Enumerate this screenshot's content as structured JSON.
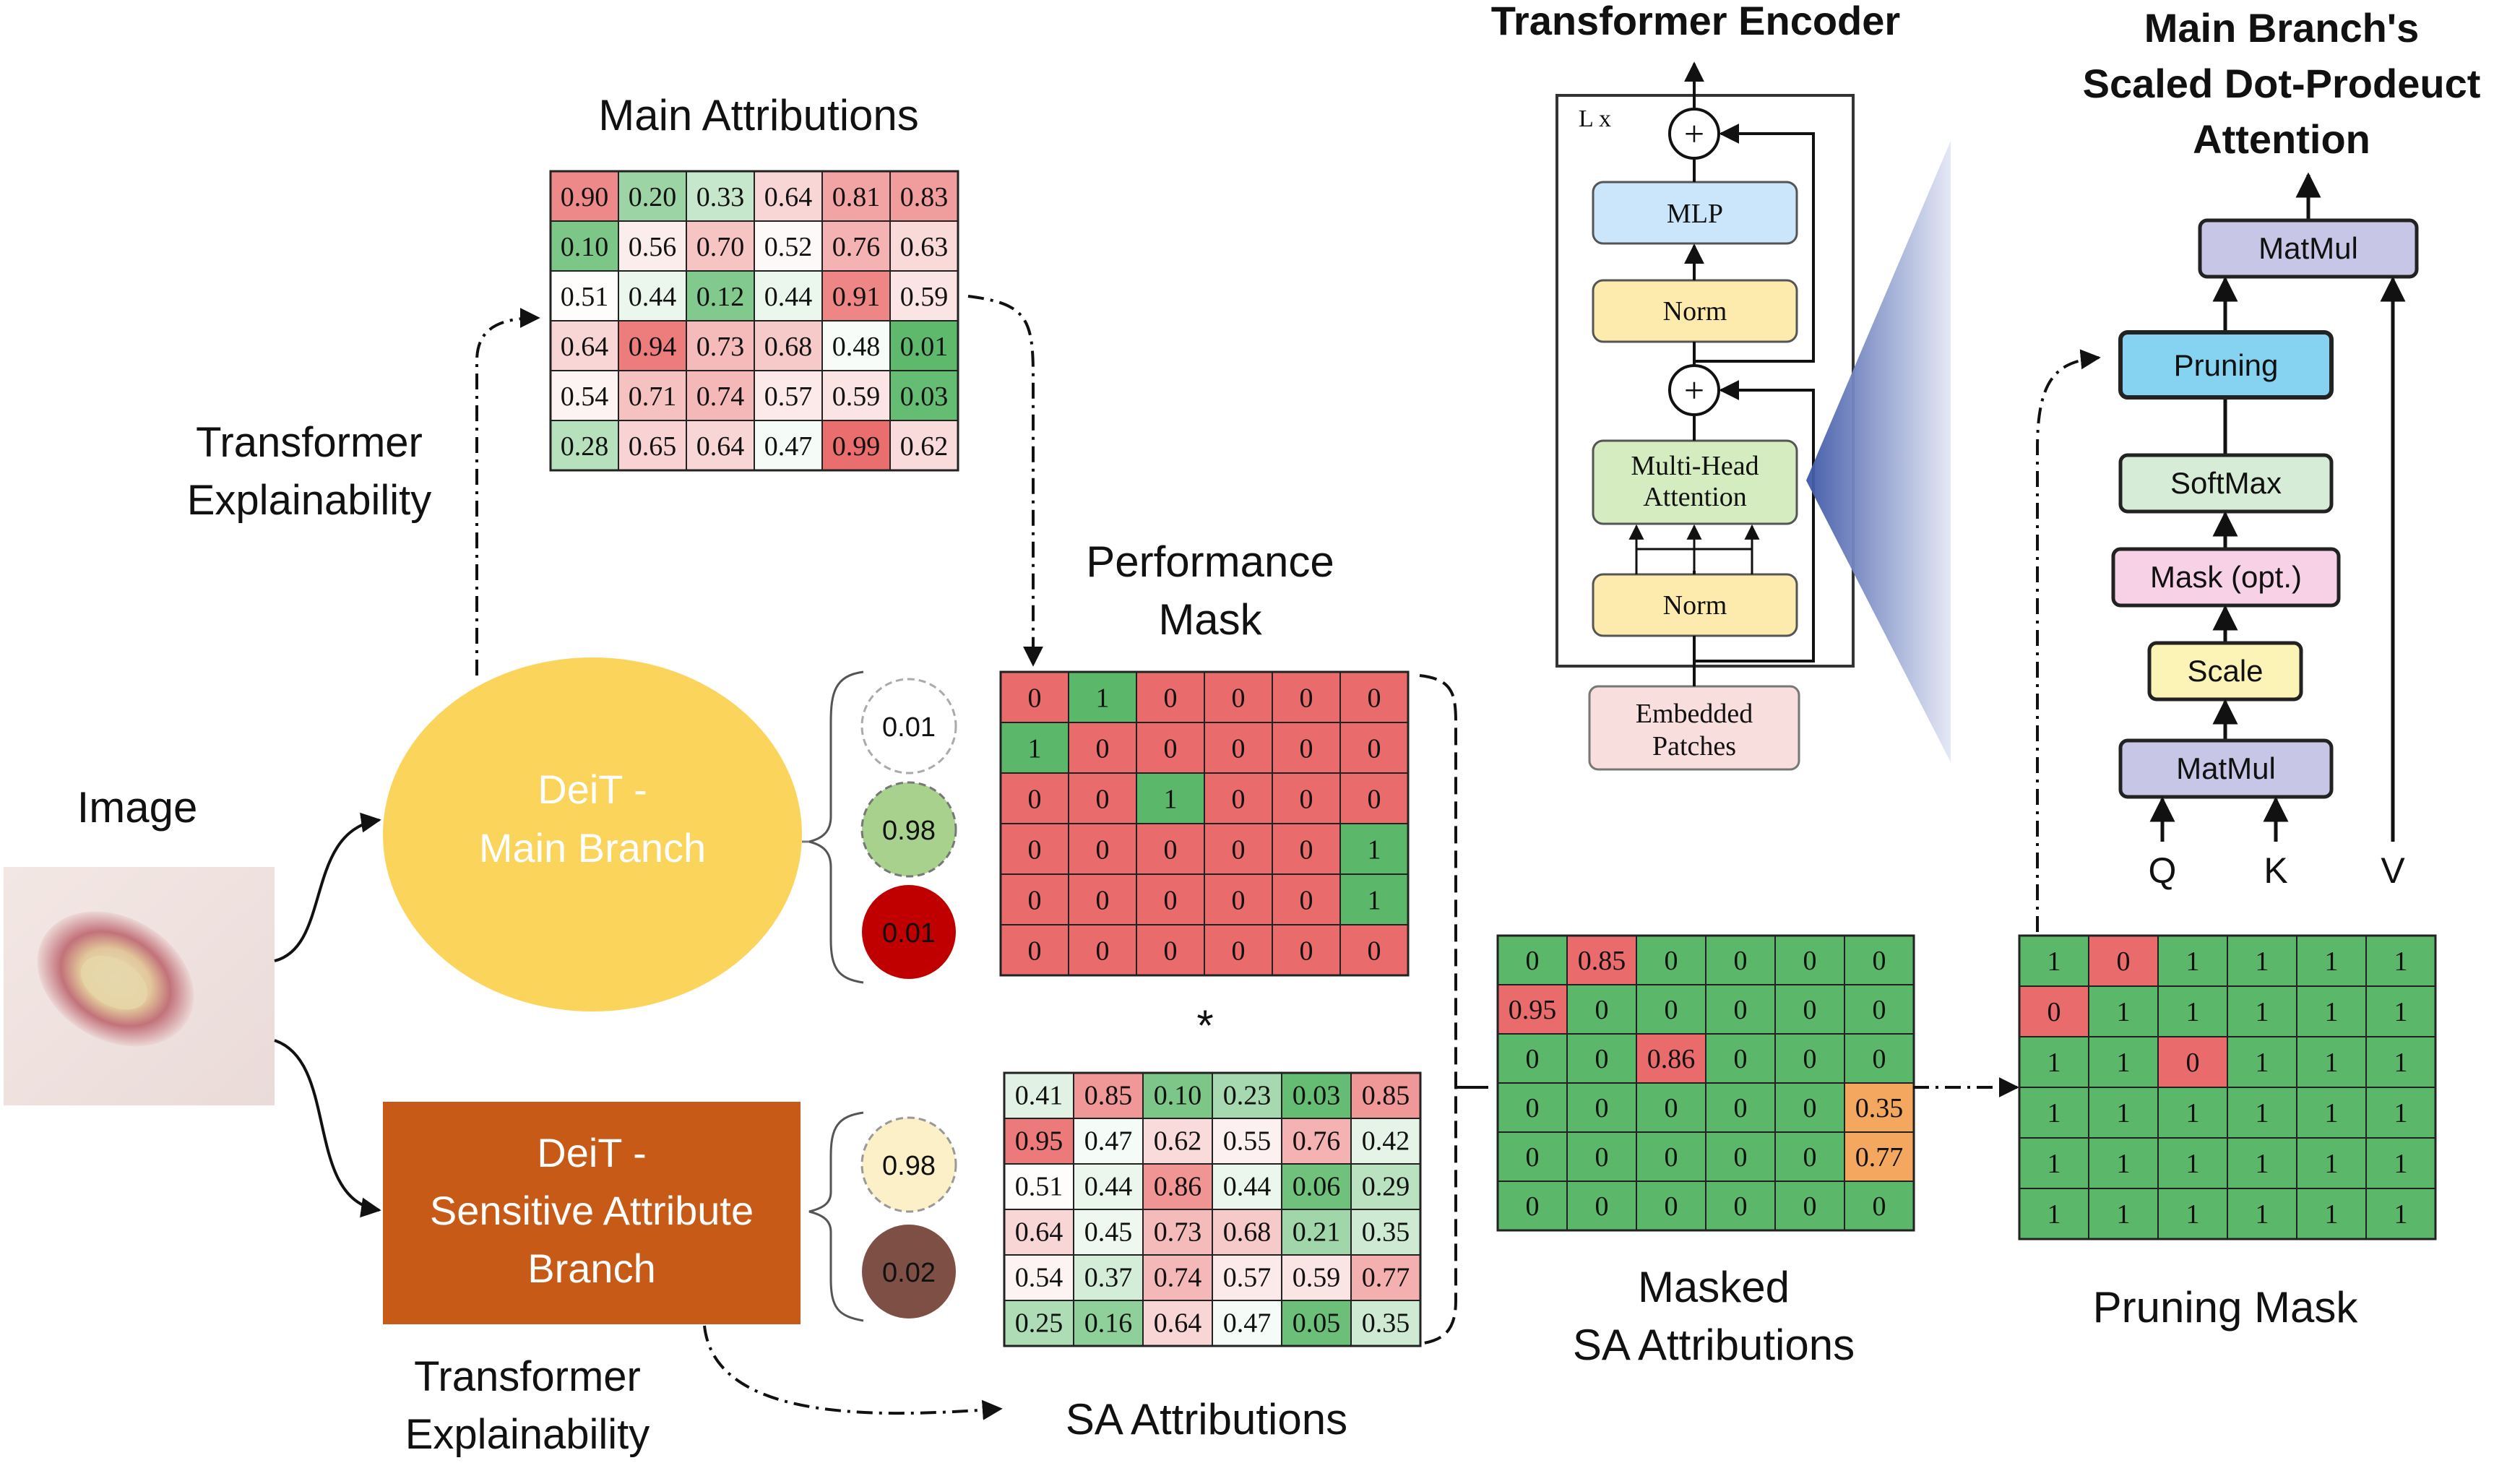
{
  "colors": {
    "green": "#5bb86a",
    "red": "#ea6b6b",
    "orange": "#f4a85f",
    "lightred": "#f8caca",
    "lightgreen": "#cfe9cf",
    "deit_main": "#fbd45c",
    "deit_sa": "#c65a16",
    "mlp": "#cbe6fb",
    "norm": "#fcebad",
    "mha": "#d4ecbf",
    "embed": "#f9dede",
    "matmul": "#c7c6e6",
    "pruning": "#86d3f1",
    "softmax": "#d6ecd6",
    "mask": "#f7d2e6",
    "scale": "#fcf3b6"
  },
  "labels": {
    "image": "Image",
    "main_attributions": "Main Attributions",
    "te_top": [
      "Transformer",
      "Explainability"
    ],
    "te_bottom": [
      "Transformer",
      "Explainability"
    ],
    "performance_mask": [
      "Performance",
      "Mask"
    ],
    "deit_main": [
      "DeiT -",
      "Main Branch"
    ],
    "deit_sa": [
      "DeiT -",
      "Sensitive Attribute",
      "Branch"
    ],
    "multiply": "*",
    "sa_attributions": "SA Attributions",
    "masked_sa": [
      "Masked",
      "SA Attributions"
    ],
    "pruning_mask": "Pruning Mask"
  },
  "scores": {
    "main": [
      "0.01",
      "0.98",
      "0.01"
    ],
    "sa": [
      "0.98",
      "0.02"
    ]
  },
  "encoder": {
    "title": "Transformer Encoder",
    "lx": "L x",
    "plus": "+",
    "mlp": "MLP",
    "norm_top": "Norm",
    "mha": [
      "Multi-Head",
      "Attention"
    ],
    "norm_bottom": "Norm",
    "embedded": [
      "Embedded",
      "Patches"
    ]
  },
  "attention": {
    "title": [
      "Main Branch's",
      "Scaled Dot-Prodeuct",
      "Attention"
    ],
    "matmul_top": "MatMul",
    "pruning": "Pruning",
    "softmax": "SoftMax",
    "mask": "Mask (opt.)",
    "scale": "Scale",
    "matmul_bottom": "MatMul",
    "q": "Q",
    "k": "K",
    "v": "V"
  },
  "main_attributions": {
    "values": [
      [
        "0.90",
        "0.20",
        "0.33",
        "0.64",
        "0.81",
        "0.83"
      ],
      [
        "0.10",
        "0.56",
        "0.70",
        "0.52",
        "0.76",
        "0.63"
      ],
      [
        "0.51",
        "0.44",
        "0.12",
        "0.44",
        "0.91",
        "0.59"
      ],
      [
        "0.64",
        "0.94",
        "0.73",
        "0.68",
        "0.48",
        "0.01"
      ],
      [
        "0.54",
        "0.71",
        "0.74",
        "0.57",
        "0.59",
        "0.03"
      ],
      [
        "0.28",
        "0.65",
        "0.64",
        "0.47",
        "0.99",
        "0.62"
      ]
    ]
  },
  "performance_mask": {
    "values": [
      [
        "0",
        "1",
        "0",
        "0",
        "0",
        "0"
      ],
      [
        "1",
        "0",
        "0",
        "0",
        "0",
        "0"
      ],
      [
        "0",
        "0",
        "1",
        "0",
        "0",
        "0"
      ],
      [
        "0",
        "0",
        "0",
        "0",
        "0",
        "1"
      ],
      [
        "0",
        "0",
        "0",
        "0",
        "0",
        "1"
      ],
      [
        "0",
        "0",
        "0",
        "0",
        "0",
        "0"
      ]
    ]
  },
  "sa_attributions": {
    "values": [
      [
        "0.41",
        "0.85",
        "0.10",
        "0.23",
        "0.03",
        "0.85"
      ],
      [
        "0.95",
        "0.47",
        "0.62",
        "0.55",
        "0.76",
        "0.42"
      ],
      [
        "0.51",
        "0.44",
        "0.86",
        "0.44",
        "0.06",
        "0.29"
      ],
      [
        "0.64",
        "0.45",
        "0.73",
        "0.68",
        "0.21",
        "0.35"
      ],
      [
        "0.54",
        "0.37",
        "0.74",
        "0.57",
        "0.59",
        "0.77"
      ],
      [
        "0.25",
        "0.16",
        "0.64",
        "0.47",
        "0.05",
        "0.35"
      ]
    ]
  },
  "masked_sa": {
    "values": [
      [
        "0",
        "0.85",
        "0",
        "0",
        "0",
        "0"
      ],
      [
        "0.95",
        "0",
        "0",
        "0",
        "0",
        "0"
      ],
      [
        "0",
        "0",
        "0.86",
        "0",
        "0",
        "0"
      ],
      [
        "0",
        "0",
        "0",
        "0",
        "0",
        "0.35"
      ],
      [
        "0",
        "0",
        "0",
        "0",
        "0",
        "0.77"
      ],
      [
        "0",
        "0",
        "0",
        "0",
        "0",
        "0"
      ]
    ]
  },
  "pruning_mask": {
    "values": [
      [
        "1",
        "0",
        "1",
        "1",
        "1",
        "1"
      ],
      [
        "0",
        "1",
        "1",
        "1",
        "1",
        "1"
      ],
      [
        "1",
        "1",
        "0",
        "1",
        "1",
        "1"
      ],
      [
        "1",
        "1",
        "1",
        "1",
        "1",
        "1"
      ],
      [
        "1",
        "1",
        "1",
        "1",
        "1",
        "1"
      ],
      [
        "1",
        "1",
        "1",
        "1",
        "1",
        "1"
      ]
    ]
  }
}
